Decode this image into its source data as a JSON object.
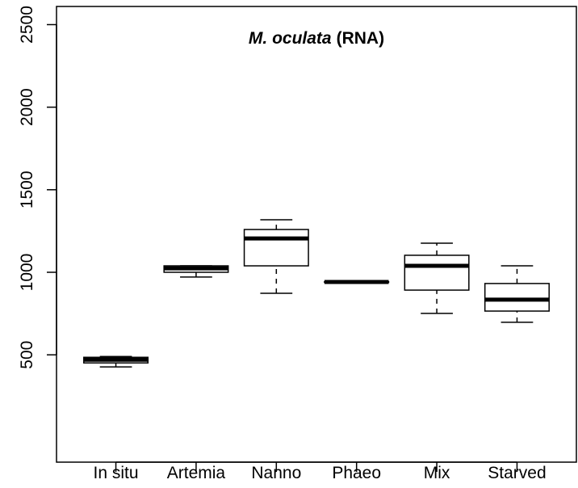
{
  "chart_data": {
    "type": "box",
    "title": {
      "italic": "M. oculata",
      "rest": "(RNA)"
    },
    "categories": [
      "In situ",
      "Artemia",
      "Nanno",
      "Phaeo",
      "Mix",
      "Starved"
    ],
    "min": [
      427,
      971,
      873,
      939,
      751,
      697
    ],
    "q1": [
      451,
      1000,
      1039,
      939,
      892,
      765
    ],
    "median": [
      470,
      1024,
      1205,
      941,
      1039,
      834
    ],
    "q3": [
      485,
      1039,
      1259,
      943,
      1103,
      932
    ],
    "max": [
      490,
      1039,
      1318,
      943,
      1176,
      1039
    ],
    "ylim": [
      -150,
      2610
    ],
    "yticks": [
      500,
      1000,
      1500,
      2000,
      2500
    ],
    "color": "#000000"
  }
}
